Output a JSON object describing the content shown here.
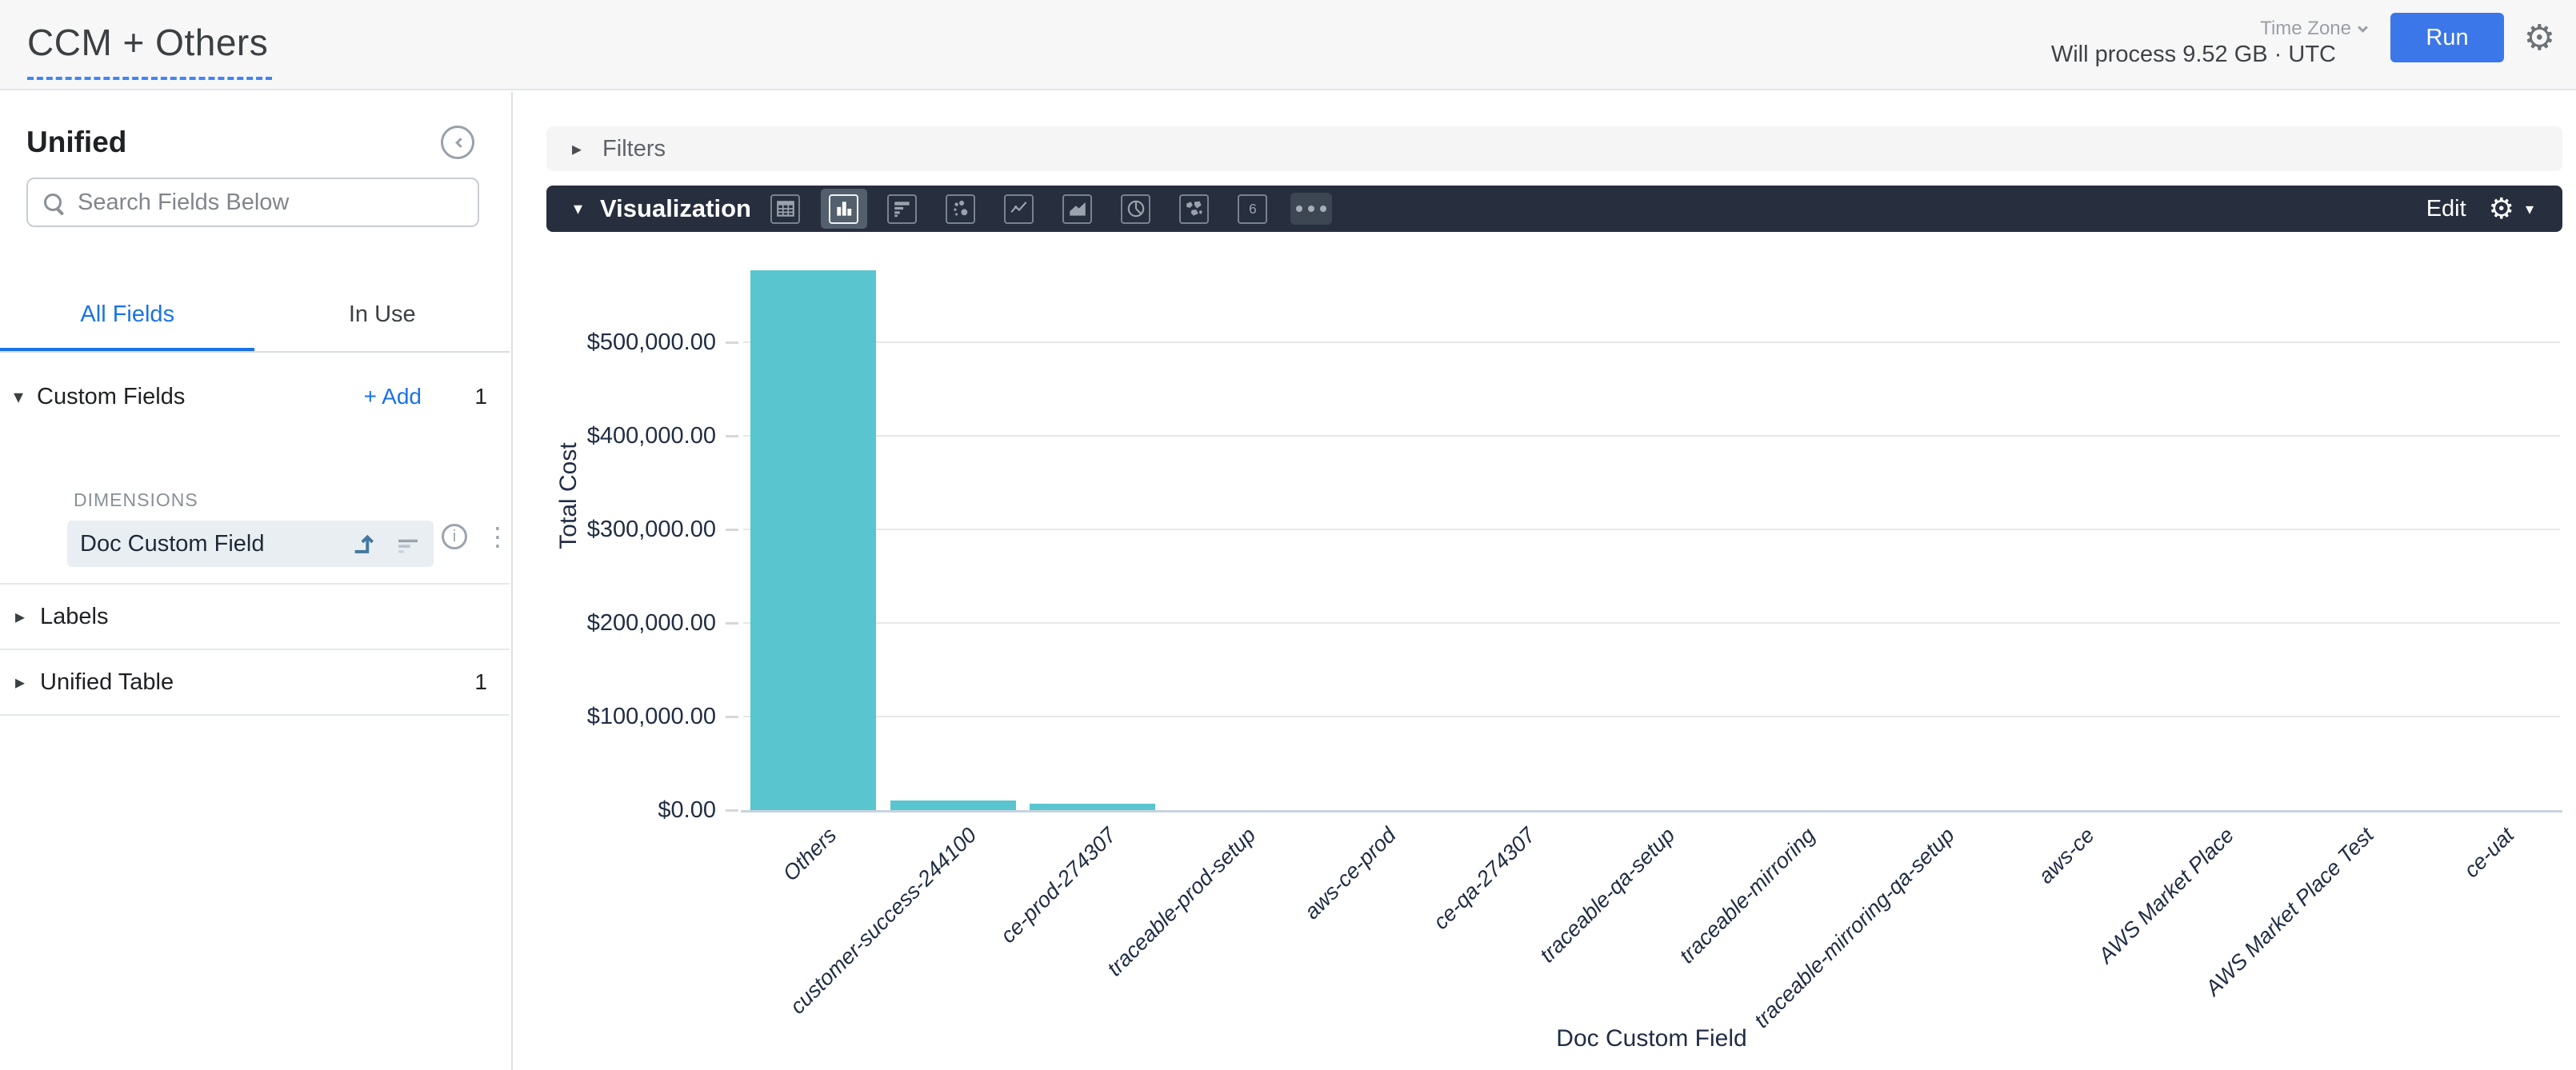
{
  "header": {
    "title": "CCM + Others",
    "process_info": "Will process 9.52 GB · UTC",
    "time_zone_label": "Time Zone",
    "run_label": "Run"
  },
  "sidebar": {
    "explore_label": "Unified",
    "search_placeholder": "Search Fields Below",
    "tabs": [
      {
        "label": "All Fields",
        "active": true
      },
      {
        "label": "In Use",
        "active": false
      }
    ],
    "custom_fields": {
      "label": "Custom Fields",
      "add_label": "+ Add",
      "count": "1",
      "group_label": "DIMENSIONS",
      "field": {
        "label": "Doc Custom Field",
        "selected": true
      }
    },
    "labels_row": {
      "label": "Labels"
    },
    "unified_table_row": {
      "label": "Unified Table",
      "count": "1"
    }
  },
  "filters": {
    "label": "Filters"
  },
  "visualization": {
    "label": "Visualization",
    "edit_label": "Edit",
    "icons": [
      {
        "name": "table-icon",
        "selected": false
      },
      {
        "name": "column-chart-icon",
        "selected": true
      },
      {
        "name": "bar-chart-icon",
        "selected": false
      },
      {
        "name": "scatter-chart-icon",
        "selected": false
      },
      {
        "name": "line-chart-icon",
        "selected": false
      },
      {
        "name": "area-chart-icon",
        "selected": false
      },
      {
        "name": "pie-chart-icon",
        "selected": false
      },
      {
        "name": "map-chart-icon",
        "selected": false
      },
      {
        "name": "single-value-icon",
        "selected": false
      },
      {
        "name": "more-viz-types-icon",
        "selected": false
      }
    ]
  },
  "chart_data": {
    "type": "bar",
    "categories": [
      "Others",
      "customer-success-244100",
      "ce-prod-274307",
      "traceable-prod-setup",
      "aws-ce-prod",
      "ce-qa-274307",
      "traceable-qa-setup",
      "traceable-mirroring",
      "traceable-mirroring-qa-setup",
      "aws-ce",
      "AWS Market Place",
      "AWS Market Place Test",
      "ce-uat"
    ],
    "values": [
      577000,
      10000,
      7000,
      0,
      0,
      0,
      0,
      0,
      0,
      0,
      0,
      0,
      0
    ],
    "xlabel": "Doc Custom Field",
    "ylabel": "Total Cost",
    "ylim": [
      0,
      585000
    ],
    "yticks": [
      {
        "value": 0,
        "label": "$0.00"
      },
      {
        "value": 100000,
        "label": "$100,000.00"
      },
      {
        "value": 200000,
        "label": "$200,000.00"
      },
      {
        "value": 300000,
        "label": "$300,000.00"
      },
      {
        "value": 400000,
        "label": "$400,000.00"
      },
      {
        "value": 500000,
        "label": "$500,000.00"
      }
    ],
    "grid": true,
    "legend": false,
    "bar_color": "#59c5cf"
  }
}
